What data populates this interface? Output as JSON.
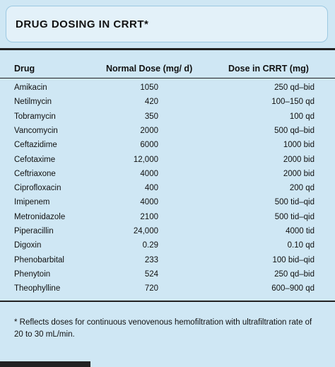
{
  "title": "DRUG DOSING IN CRRT*",
  "table": {
    "header": [
      "Drug",
      "Normal Dose (mg/ d)",
      "Dose in CRRT (mg)"
    ],
    "rows": [
      [
        "Amikacin",
        "1050",
        "250 qd–bid"
      ],
      [
        "Netilmycin",
        "420",
        "100–150 qd"
      ],
      [
        "Tobramycin",
        "350",
        "100 qd"
      ],
      [
        "Vancomycin",
        "2000",
        "500 qd–bid"
      ],
      [
        "Ceftazidime",
        "6000",
        "1000 bid"
      ],
      [
        "Cefotaxime",
        "12,000",
        "2000 bid"
      ],
      [
        "Ceftriaxone",
        "4000",
        "2000 bid"
      ],
      [
        "Ciprofloxacin",
        "400",
        "200 qd"
      ],
      [
        "Imipenem",
        "4000",
        "500 tid–qid"
      ],
      [
        "Metronidazole",
        "2100",
        "500 tid–qid"
      ],
      [
        "Piperacillin",
        "24,000",
        "4000 tid"
      ],
      [
        "Digoxin",
        "0.29",
        "0.10 qd"
      ],
      [
        "Phenobarbital",
        "233",
        "100 bid–qid"
      ],
      [
        "Phenytoin",
        "524",
        "250 qd–bid"
      ],
      [
        "Theophylline",
        "720",
        "600–900 qd"
      ]
    ]
  },
  "footnote": "* Reflects doses for continuous venovenous hemofiltration with ultrafiltration rate of 20 to 30 mL/min."
}
